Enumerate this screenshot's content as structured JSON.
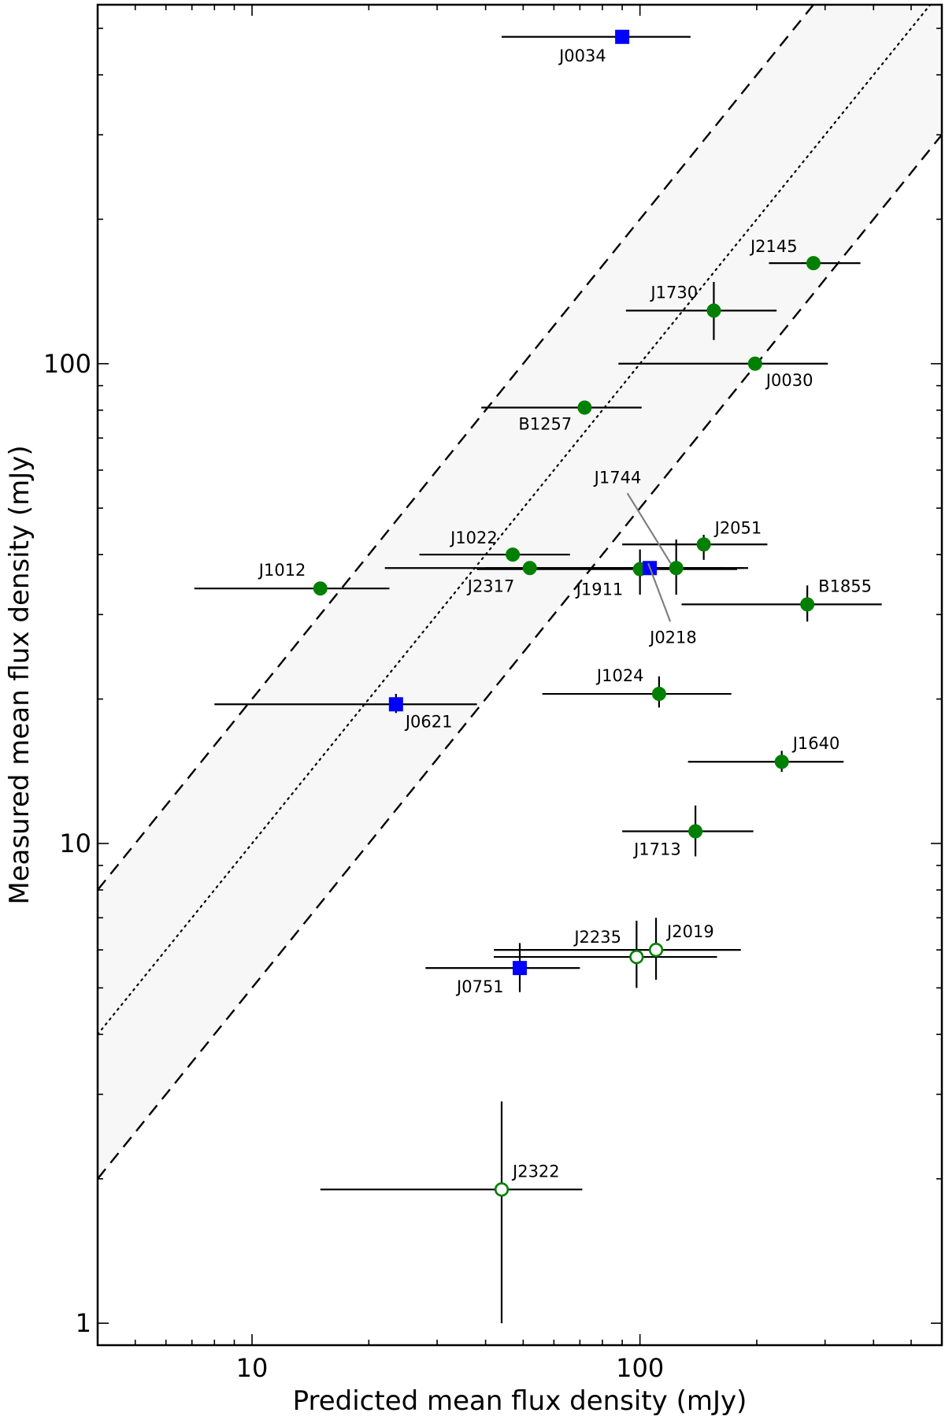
{
  "chart_data": {
    "type": "scatter",
    "title": "",
    "xlabel": "Predicted mean flux density (mJy)",
    "ylabel": "Measured mean flux density (mJy)",
    "xscale": "log",
    "yscale": "log",
    "xlim": [
      4,
      600
    ],
    "ylim": [
      0.9,
      560
    ],
    "x_tick_labels": [
      "10",
      "100"
    ],
    "y_tick_labels": [
      "1",
      "10",
      "100"
    ],
    "colors": {
      "green": "#008000",
      "blue": "#0000ff",
      "band": "#f7f7f7"
    },
    "reference_lines": [
      {
        "name": "equality",
        "style": "dotted",
        "factor": 1
      },
      {
        "name": "upper bound",
        "style": "dashed",
        "factor": 2
      },
      {
        "name": "lower bound",
        "style": "dashed",
        "factor": 0.5
      }
    ],
    "points": [
      {
        "label": "J0034",
        "x": 90,
        "y": 480,
        "xerr": [
          44,
          135
        ],
        "marker": "square",
        "color": "blue",
        "filled": true
      },
      {
        "label": "J2145",
        "x": 280,
        "y": 162,
        "xerr": [
          215,
          370
        ],
        "marker": "circle",
        "color": "green",
        "filled": true
      },
      {
        "label": "J1730",
        "x": 155,
        "y": 129,
        "xerr": [
          92,
          225
        ],
        "yerr": [
          112,
          148
        ],
        "marker": "circle",
        "color": "green",
        "filled": true
      },
      {
        "label": "J0030",
        "x": 198,
        "y": 100,
        "xerr": [
          88,
          305
        ],
        "marker": "circle",
        "color": "green",
        "filled": true
      },
      {
        "label": "B1257",
        "x": 72,
        "y": 81,
        "xerr": [
          39,
          101
        ],
        "marker": "circle",
        "color": "green",
        "filled": true
      },
      {
        "label": "J2051",
        "x": 146,
        "y": 42,
        "xerr": [
          90,
          213
        ],
        "yerr": [
          39,
          44
        ],
        "marker": "circle",
        "color": "green",
        "filled": true
      },
      {
        "label": "J1022",
        "x": 47,
        "y": 40,
        "xerr": [
          27,
          66
        ],
        "marker": "circle",
        "color": "green",
        "filled": true
      },
      {
        "label": "J2317",
        "x": 52,
        "y": 37.5,
        "xerr": [
          22,
          185
        ],
        "marker": "circle",
        "color": "green",
        "filled": true
      },
      {
        "label": "J1911",
        "x": 100,
        "y": 37.3,
        "xerr": [
          38,
          178
        ],
        "yerr": [
          33,
          41
        ],
        "marker": "circle",
        "color": "green",
        "filled": true
      },
      {
        "label": "J1744",
        "x": 124,
        "y": 37.5,
        "xerr": [
          70,
          190
        ],
        "yerr": [
          33,
          43
        ],
        "marker": "circle",
        "color": "green",
        "filled": true
      },
      {
        "label": "J0218",
        "x": 106,
        "y": 37.5,
        "xerr": [
          40,
          165
        ],
        "marker": "square",
        "color": "blue",
        "filled": true
      },
      {
        "label": "J1012",
        "x": 15,
        "y": 34,
        "xerr": [
          7.1,
          22.6
        ],
        "marker": "circle",
        "color": "green",
        "filled": true
      },
      {
        "label": "B1855",
        "x": 270,
        "y": 31.5,
        "xerr": [
          128,
          420
        ],
        "yerr": [
          29,
          34.5
        ],
        "marker": "circle",
        "color": "green",
        "filled": true
      },
      {
        "label": "J1024",
        "x": 112,
        "y": 20.5,
        "xerr": [
          56,
          172
        ],
        "yerr": [
          19.2,
          22.3
        ],
        "marker": "circle",
        "color": "green",
        "filled": true
      },
      {
        "label": "J0621",
        "x": 23.5,
        "y": 19.5,
        "xerr": [
          8,
          38
        ],
        "yerr": [
          18.7,
          20.5
        ],
        "marker": "square",
        "color": "blue",
        "filled": true
      },
      {
        "label": "J1640",
        "x": 232,
        "y": 14.8,
        "xerr": [
          133,
          335
        ],
        "yerr": [
          14.1,
          15.6
        ],
        "marker": "circle",
        "color": "green",
        "filled": true
      },
      {
        "label": "J1713",
        "x": 139,
        "y": 10.6,
        "xerr": [
          90,
          196
        ],
        "yerr": [
          9.4,
          12
        ],
        "marker": "circle",
        "color": "green",
        "filled": true
      },
      {
        "label": "J2019",
        "x": 110,
        "y": 6.0,
        "xerr": [
          42,
          182
        ],
        "yerr": [
          5.2,
          7.0
        ],
        "marker": "circle",
        "color": "green",
        "filled": false
      },
      {
        "label": "J2235",
        "x": 98,
        "y": 5.8,
        "xerr": [
          42,
          158
        ],
        "yerr": [
          5.0,
          6.9
        ],
        "marker": "circle",
        "color": "green",
        "filled": false
      },
      {
        "label": "J0751",
        "x": 49,
        "y": 5.5,
        "xerr": [
          28,
          70
        ],
        "yerr": [
          4.9,
          6.2
        ],
        "marker": "square",
        "color": "blue",
        "filled": true
      },
      {
        "label": "J2322",
        "x": 44,
        "y": 1.9,
        "xerr": [
          15,
          71
        ],
        "yerr": [
          1.0,
          2.9
        ],
        "marker": "circle",
        "color": "green",
        "filled": false
      }
    ]
  }
}
